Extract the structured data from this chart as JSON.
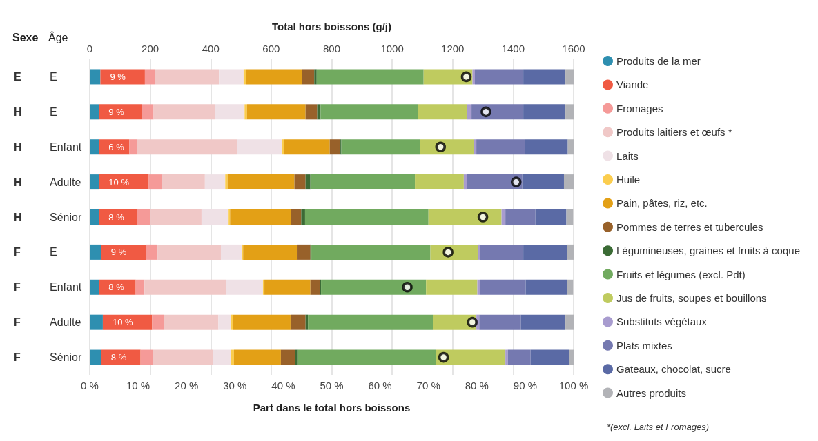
{
  "chart_data": {
    "type": "bar",
    "orientation": "horizontal",
    "stacked": true,
    "categories": [
      "E",
      "E",
      "Enfant",
      "Adulte",
      "Sénior",
      "E",
      "Enfant",
      "Adulte",
      "Sénior"
    ],
    "y2_categories": [
      "E",
      "H",
      "H",
      "H",
      "H",
      "F",
      "F",
      "F",
      "F"
    ],
    "ylabel": "Âge",
    "y2label": "Sexe",
    "xlabel": "Part dans le total hors boissons",
    "x2label": "Total hors boissons (g/j)",
    "xlim": [
      0,
      100
    ],
    "xticks": [
      {
        "value": 0,
        "label": "0 %"
      },
      {
        "value": 10,
        "label": "10 %"
      },
      {
        "value": 20,
        "label": "20 %"
      },
      {
        "value": 30,
        "label": "30 %"
      },
      {
        "value": 40,
        "label": "40 %"
      },
      {
        "value": 50,
        "label": "50 %"
      },
      {
        "value": 60,
        "label": "60 %"
      },
      {
        "value": 70,
        "label": "70 %"
      },
      {
        "value": 80,
        "label": "80 %"
      },
      {
        "value": 90,
        "label": "90 %"
      },
      {
        "value": 100,
        "label": "100 %"
      }
    ],
    "x2lim": [
      0,
      1600
    ],
    "x2ticks": [
      0,
      200,
      400,
      600,
      800,
      1000,
      1200,
      1400,
      1600
    ],
    "grid": "x",
    "legend": "right",
    "annotations": [
      "*(excl. Laits et Fromages)"
    ],
    "series": [
      {
        "name": "Produits de la mer",
        "color": "#2e8fb0",
        "values": [
          2.2,
          1.9,
          1.9,
          1.9,
          1.9,
          2.4,
          1.9,
          2.7,
          2.4
        ]
      },
      {
        "name": "Viande",
        "color": "#f05a43",
        "values": [
          9.2,
          8.9,
          6.3,
          10.3,
          7.9,
          9.2,
          7.6,
          10.2,
          8.1
        ],
        "value_labels": [
          "9 %",
          "9 %",
          "6 %",
          "10 %",
          "8 %",
          "9 %",
          "8 %",
          "10 %",
          "8 %"
        ]
      },
      {
        "name": "Fromages",
        "color": "#f59a98",
        "values": [
          2.1,
          2.4,
          1.6,
          2.7,
          2.8,
          2.4,
          1.8,
          2.4,
          2.6
        ]
      },
      {
        "name": "Produits laitiers et œufs *",
        "color": "#f0c8c7",
        "values": [
          13.2,
          12.7,
          20.6,
          8.9,
          10.5,
          13.1,
          16.9,
          11.3,
          12.4
        ]
      },
      {
        "name": "Laits",
        "color": "#efe1e6",
        "values": [
          5.1,
          6.1,
          9.4,
          4.2,
          5.6,
          4.3,
          7.6,
          2.5,
          3.7
        ]
      },
      {
        "name": "Huile",
        "color": "#fbcd4e",
        "values": [
          0.5,
          0.5,
          0.3,
          0.5,
          0.3,
          0.3,
          0.3,
          0.5,
          0.6
        ]
      },
      {
        "name": "Pain, pâtes, riz, etc.",
        "color": "#e3a016",
        "values": [
          11.5,
          12.1,
          9.5,
          13.8,
          12.6,
          11.1,
          9.5,
          11.9,
          9.7
        ]
      },
      {
        "name": "Pommes de terres et tubercules",
        "color": "#98612a",
        "values": [
          2.6,
          2.4,
          2.2,
          2.3,
          2.1,
          2.8,
          2.0,
          3.1,
          2.9
        ]
      },
      {
        "name": "Légumineuses, graines et fruits à coque",
        "color": "#3b6b35",
        "values": [
          0.5,
          0.7,
          0.2,
          1.0,
          0.8,
          0.2,
          0.2,
          0.5,
          0.5
        ]
      },
      {
        "name": "Fruits et légumes (excl. Pdt)",
        "color": "#71aa5f",
        "values": [
          22.1,
          20.1,
          16.3,
          21.6,
          25.5,
          24.6,
          21.7,
          25.8,
          28.6
        ]
      },
      {
        "name": "Jus de fruits, soupes et bouillons",
        "color": "#bfcb5f",
        "values": [
          10.1,
          10.2,
          11.1,
          10.1,
          15.1,
          9.8,
          10.6,
          9.0,
          14.4
        ]
      },
      {
        "name": "Substituts végétaux",
        "color": "#a89ccf",
        "values": [
          0.5,
          0.9,
          0.5,
          0.7,
          0.8,
          0.5,
          0.5,
          0.6,
          0.5
        ]
      },
      {
        "name": "Plats mixtes",
        "color": "#7579b0",
        "values": [
          10.0,
          10.7,
          10.0,
          11.4,
          6.2,
          8.9,
          9.5,
          8.6,
          4.7
        ]
      },
      {
        "name": "Gateaux, chocolat, sucre",
        "color": "#5a6aa5",
        "values": [
          8.7,
          8.7,
          8.9,
          8.6,
          6.4,
          9.0,
          8.6,
          9.2,
          8.0
        ]
      },
      {
        "name": "Autres produits",
        "color": "#b2b3b7",
        "values": [
          1.7,
          1.7,
          1.2,
          2.0,
          1.4,
          1.4,
          1.2,
          1.7,
          0.9
        ]
      },
      {
        "type": "scatter",
        "axis": "x2",
        "marker": "circle",
        "color": "#000000",
        "values": [
          1245,
          1310,
          1160,
          1410,
          1300,
          1185,
          1050,
          1265,
          1170
        ]
      }
    ]
  }
}
